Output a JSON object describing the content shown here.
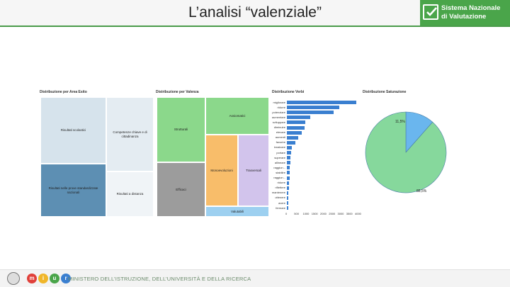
{
  "header": {
    "title": "L’analisi “valenziale”",
    "brand_line1": "Sistema Nazionale",
    "brand_line2": "di Valutazione"
  },
  "panels": {
    "area_esito": {
      "title": "Distribuzione per Area Esito",
      "cells": [
        "Risultati scolastici",
        "Competenze chiave e di cittadinanza",
        "Risultati nelle prove standardizzate nazionali",
        "Risultati a distanza"
      ]
    },
    "valenza": {
      "title": "Distribuzione per Valenza",
      "cells": [
        "Strutturali",
        "Assiomatici",
        "Monoevoluzioni",
        "Trasversali",
        "Efficaci",
        "Valutabili"
      ]
    },
    "verbi": {
      "title": "Distribuzione Verbi",
      "labels": [
        "migliorare",
        "ridurre",
        "potenziare",
        "aumentare",
        "sviluppare",
        "diminuire",
        "elevare",
        "aumenti",
        "favorire",
        "innalzare",
        "portare",
        "superare",
        "allineare",
        "raggiun...",
        "stabilire",
        "raggiun...",
        "ridurre",
        "riflettere",
        "mantenere",
        "ottenere",
        "avere",
        "fermare"
      ],
      "ticks": [
        "0",
        "500",
        "1000",
        "1500",
        "2000",
        "2500",
        "3000",
        "3500",
        "4000"
      ]
    },
    "saturazione": {
      "title": "Distribuzione Saturazione",
      "slice_small_label": "11,5%",
      "slice_large_label": "88,5%"
    }
  },
  "chart_data": [
    {
      "type": "bar",
      "title": "Distribuzione Verbi",
      "orientation": "horizontal",
      "categories": [
        "migliorare",
        "ridurre",
        "potenziare",
        "aumentare",
        "sviluppare",
        "diminuire",
        "elevare",
        "aumenti",
        "favorire",
        "innalzare",
        "portare",
        "superare",
        "allineare",
        "raggiun...",
        "stabilire",
        "raggiun...",
        "ridurre",
        "riflettere",
        "mantenere",
        "ottenere",
        "avere",
        "fermare"
      ],
      "values": [
        4000,
        3000,
        2700,
        1350,
        1050,
        1000,
        850,
        650,
        500,
        300,
        260,
        220,
        200,
        180,
        160,
        150,
        130,
        110,
        100,
        90,
        80,
        70
      ],
      "xlim": [
        0,
        4000
      ]
    },
    {
      "type": "pie",
      "title": "Distribuzione Saturazione",
      "labels": [
        "11,5%",
        "88,5%"
      ],
      "values": [
        11.5,
        88.5
      ],
      "colors": [
        "#6ab6ee",
        "#86d89c"
      ]
    }
  ],
  "colors": {
    "accent_green": "#4aa54a",
    "treemap_light": "#d6e3ec",
    "treemap_dark": "#5d8fb3",
    "valenza_green": "#8bd88b",
    "valenza_orange": "#f8bd6a",
    "valenza_purple": "#d2c4ec",
    "valenza_gray": "#9c9c9c",
    "valenza_blue": "#9dd0f0",
    "bar_blue": "#3a7fd0"
  },
  "footer": {
    "ministry_text": "MINISTERO DELL’ISTRUZIONE, DELL’UNIVERSITÀ E DELLA RICERCA",
    "miur_letters": [
      "m",
      "i",
      "u",
      "r"
    ]
  }
}
